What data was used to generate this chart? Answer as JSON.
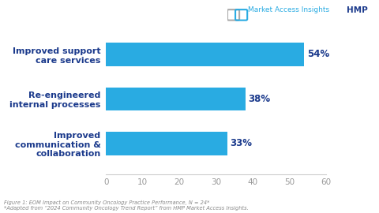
{
  "categories": [
    "Improved support\ncare services",
    "Re-engineered\ninternal processes",
    "Improved\ncommunication &\ncollaboration"
  ],
  "values": [
    54,
    38,
    33
  ],
  "labels": [
    "54%",
    "38%",
    "33%"
  ],
  "bar_color": "#29ABE2",
  "text_color": "#1B3A8C",
  "label_color": "#1B3A8C",
  "background_color": "#FFFFFF",
  "xlim": [
    0,
    60
  ],
  "xticks": [
    0,
    10,
    20,
    30,
    40,
    50,
    60
  ],
  "tick_color": "#999999",
  "footnote_line1": "Figure 1: EOM Impact on Community Oncology Practice Performance, N = 24*",
  "footnote_line2": "*Adapted from “2024 Community Oncology Trend Report” from HMP Market Access Insights.",
  "footnote_color": "#888888",
  "footnote_fontsize": 4.8,
  "ylabel_fontsize": 8.0,
  "label_fontsize": 8.5,
  "tick_fontsize": 7.5,
  "bar_height": 0.52,
  "logo_hmp": "HMP",
  "logo_sub": "Market Access Insights",
  "logo_hmp_color": "#1B3A8C",
  "logo_sub_color": "#29ABE2"
}
